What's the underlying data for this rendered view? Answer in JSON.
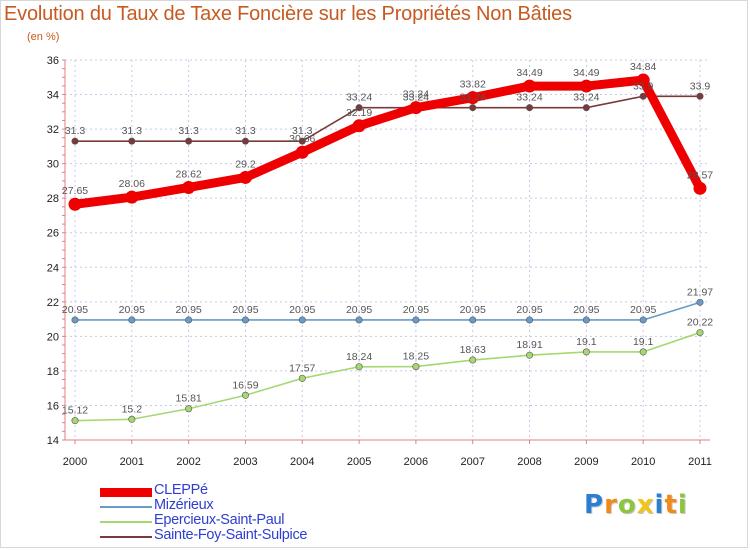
{
  "header": {
    "title": "Evolution du Taux de Taxe Foncière sur les Propriétés Non Bâties",
    "unit": "(en %)"
  },
  "chart_data": {
    "type": "line",
    "title": "Evolution du Taux de Taxe Foncière sur les Propriétés Non Bâties",
    "ylabel": "(en %)",
    "xlabel": "",
    "x": [
      "2000",
      "2001",
      "2002",
      "2003",
      "2004",
      "2005",
      "2006",
      "2007",
      "2008",
      "2009",
      "2010",
      "2011"
    ],
    "ylim": [
      14,
      36
    ],
    "yticks": [
      14,
      16,
      18,
      20,
      22,
      24,
      26,
      28,
      30,
      32,
      34,
      36
    ],
    "grid": true,
    "series": [
      {
        "name": "CLEPPé",
        "color": "#ee0000",
        "emphasis": true,
        "values": [
          27.65,
          28.06,
          28.62,
          29.2,
          30.66,
          32.19,
          33.24,
          33.82,
          34.49,
          34.49,
          34.84,
          28.57
        ],
        "labels": [
          "27.65",
          "28.06",
          "28.62",
          "29.2",
          "30.66",
          "32.19",
          "33.24",
          "33.82",
          "34.49",
          "34.49",
          "34.84",
          "28.57"
        ]
      },
      {
        "name": "Mizérieux",
        "color": "#6a9ac8",
        "emphasis": false,
        "values": [
          20.95,
          20.95,
          20.95,
          20.95,
          20.95,
          20.95,
          20.95,
          20.95,
          20.95,
          20.95,
          20.95,
          21.97
        ],
        "labels": [
          "20.95",
          "20.95",
          "20.95",
          "20.95",
          "20.95",
          "20.95",
          "20.95",
          "20.95",
          "20.95",
          "20.95",
          "20.95",
          "21.97"
        ]
      },
      {
        "name": "Epercieux-Saint-Paul",
        "color": "#a6d872",
        "emphasis": false,
        "values": [
          15.12,
          15.2,
          15.81,
          16.59,
          17.57,
          18.24,
          18.25,
          18.63,
          18.91,
          19.1,
          19.1,
          20.22
        ],
        "labels": [
          "15.12",
          "15.2",
          "15.81",
          "16.59",
          "17.57",
          "18.24",
          "18.25",
          "18.63",
          "18.91",
          "19.1",
          "19.1",
          "20.22"
        ]
      },
      {
        "name": "Sainte-Foy-Saint-Sulpice",
        "color": "#7a3a3a",
        "emphasis": false,
        "values": [
          31.3,
          31.3,
          31.3,
          31.3,
          31.3,
          33.24,
          33.24,
          33.24,
          33.24,
          33.24,
          33.9,
          33.9
        ],
        "labels": [
          "31.3",
          "31.3",
          "31.3",
          "31.3",
          "31.3",
          "33.24",
          "33.24",
          "33.24",
          "33.24",
          "33.24",
          "33.9",
          "33.9"
        ]
      }
    ]
  },
  "logo": {
    "letters": [
      "P",
      "r",
      "o",
      "x",
      "i",
      "t",
      "i"
    ],
    "colors": [
      "#2a7fd4",
      "#f08a1c",
      "#8cc63f",
      "#f0c419",
      "#2a7fd4",
      "#f08a1c",
      "#8cc63f"
    ]
  }
}
